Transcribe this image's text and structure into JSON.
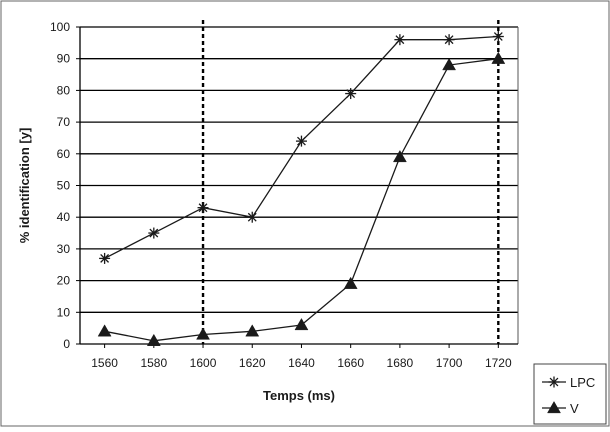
{
  "chart_data": {
    "type": "line",
    "x": [
      1560,
      1580,
      1600,
      1620,
      1640,
      1660,
      1680,
      1700,
      1720
    ],
    "x_tick_labels": [
      "1560",
      "1580",
      "1600",
      "1620",
      "1640",
      "1660",
      "1680",
      "1700",
      "1720"
    ],
    "y_tick_labels": [
      "0",
      "10",
      "20",
      "30",
      "40",
      "50",
      "60",
      "70",
      "80",
      "90",
      "100"
    ],
    "series": [
      {
        "name": "LPC",
        "marker": "asterisk",
        "values": [
          27,
          35,
          43,
          40,
          64,
          79,
          96,
          96,
          97
        ]
      },
      {
        "name": "V",
        "marker": "triangle",
        "values": [
          4,
          1,
          3,
          4,
          6,
          19,
          59,
          88,
          90
        ]
      }
    ],
    "xlabel": "Temps (ms)",
    "ylabel": "% identification [y]",
    "ylim": [
      0,
      100
    ],
    "xlim": [
      1550,
      1728
    ],
    "vertical_reference_lines": [
      1600,
      1720
    ],
    "grid": "horizontal",
    "legend_position": "bottom-right",
    "colors": {
      "line": "#1a1a1a",
      "grid": "#000000",
      "frame": "#555555"
    }
  }
}
